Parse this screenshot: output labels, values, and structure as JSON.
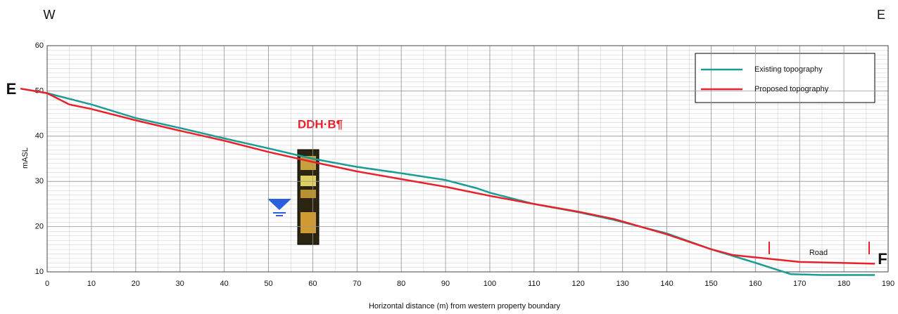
{
  "chart_data": {
    "type": "line",
    "corner_labels": {
      "left": "W",
      "right": "E"
    },
    "section_labels": {
      "start": "E",
      "end": "F"
    },
    "x_label": "Horizontal distance (m) from western property boundary",
    "y_label": "mASL",
    "annotations": {
      "borehole": "DDH·B¶",
      "road": "Road"
    },
    "series": [
      {
        "name": "Existing topography",
        "color": "#1b9c94",
        "x": [
          -6,
          0,
          10,
          20,
          30,
          40,
          50,
          60,
          70,
          80,
          90,
          97,
          100,
          110,
          120,
          128,
          140,
          150,
          160,
          168,
          175,
          187
        ],
        "values": [
          50.5,
          49.5,
          47,
          44,
          41.8,
          39.5,
          37.3,
          35,
          33.2,
          31.8,
          30.3,
          28.5,
          27.5,
          25,
          23.2,
          21.5,
          18.5,
          15,
          12,
          9.5,
          9.3,
          9.3
        ]
      },
      {
        "name": "Proposed topography",
        "color": "#e8222a",
        "x": [
          -6,
          0,
          5,
          10,
          20,
          30,
          40,
          50,
          60,
          70,
          80,
          90,
          100,
          110,
          120,
          128,
          140,
          150,
          155,
          165,
          170,
          187
        ],
        "values": [
          50.5,
          49.5,
          47,
          46,
          43.5,
          41.2,
          39,
          36.5,
          34.3,
          32.2,
          30.5,
          28.8,
          26.8,
          25,
          23.3,
          21.7,
          18.3,
          15,
          13.7,
          12.7,
          12.2,
          11.8
        ]
      }
    ],
    "xlim": [
      0,
      190
    ],
    "xticks": [
      0,
      10,
      20,
      30,
      40,
      50,
      60,
      70,
      80,
      90,
      100,
      110,
      120,
      130,
      140,
      150,
      160,
      170,
      180,
      190
    ],
    "ylim": [
      10,
      60
    ],
    "yticks": [
      10,
      20,
      30,
      40,
      50,
      60
    ],
    "grid": true,
    "legend": "upper right"
  }
}
